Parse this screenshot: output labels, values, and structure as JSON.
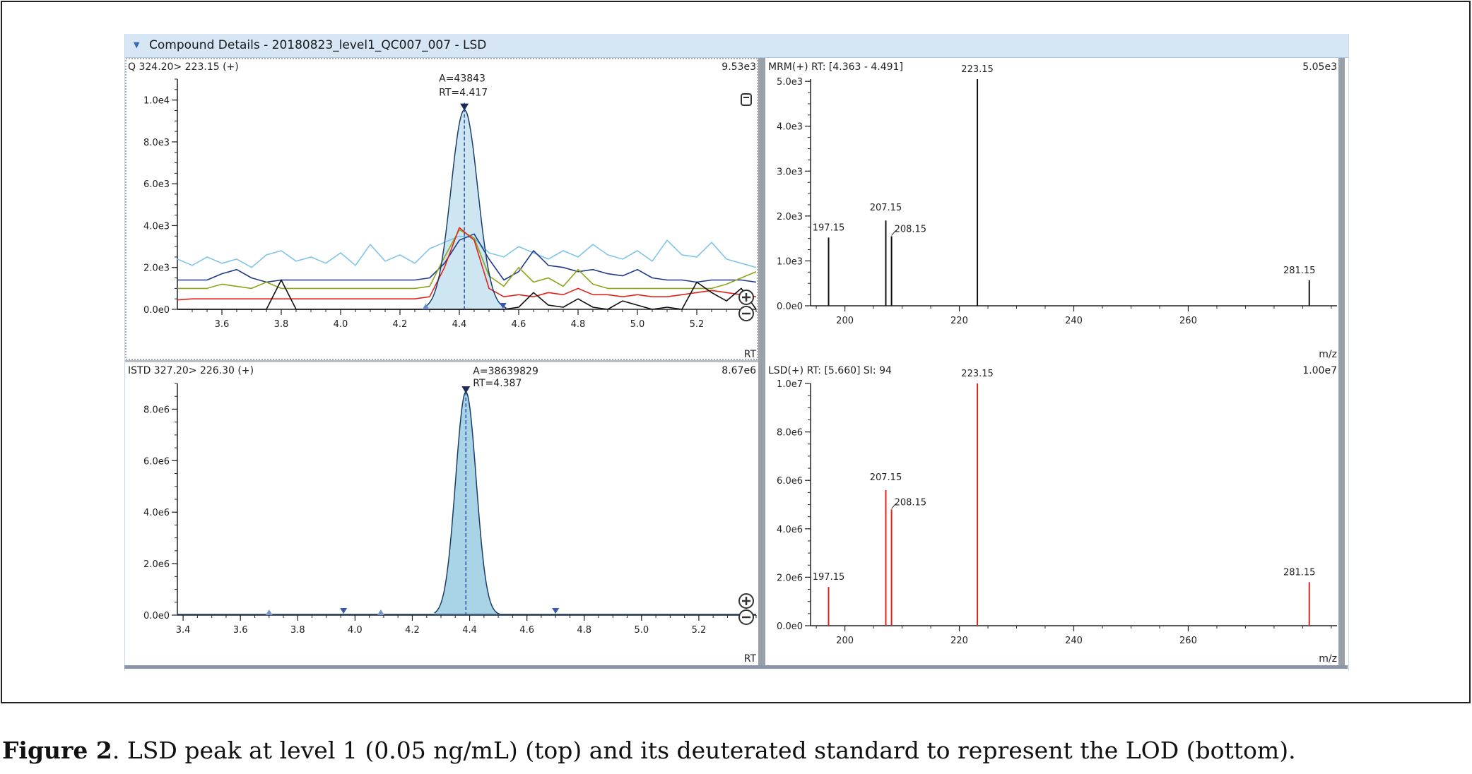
{
  "window": {
    "title": "Compound Details - 20180823_level1_QC007_007 - LSD",
    "collapse_icon": "triangle-down-icon"
  },
  "panels": {
    "quant": {
      "header": "Q 324.20> 223.15 (+)",
      "max_label": "9.53e3",
      "x_axis_label": "RT",
      "peak_label_area": "A=43843",
      "peak_label_rt": "RT=4.417"
    },
    "istd": {
      "header": "ISTD 327.20> 226.30 (+)",
      "max_label": "8.67e6",
      "x_axis_label": "RT",
      "peak_label_area": "A=38639829",
      "peak_label_rt": "RT=4.387"
    },
    "mrm": {
      "header": "MRM(+) RT: [4.363 - 4.491]",
      "max_label": "5.05e3",
      "x_axis_label": "m/z"
    },
    "lsd": {
      "header": "LSD(+) RT: [5.660] SI: 94",
      "max_label": "1.00e7",
      "x_axis_label": "m/z"
    }
  },
  "caption": {
    "bold": "Figure 2",
    "text": ". LSD peak at level 1 (0.05 ng/mL) (top) and its deuterated standard to represent the LOD (bottom)."
  },
  "chart_data": [
    {
      "type": "line",
      "panel": "quant",
      "title": "Q 324.20> 223.15 (+)",
      "xlabel": "RT",
      "ylabel": "",
      "xlim": [
        3.45,
        5.4
      ],
      "ylim": [
        0,
        11000
      ],
      "x_ticks": [
        3.6,
        3.8,
        4.0,
        4.2,
        4.4,
        4.6,
        4.8,
        5.0,
        5.2
      ],
      "y_ticks": [
        0,
        2000,
        4000,
        6000,
        8000,
        10000
      ],
      "y_tick_labels": [
        "0.0e0",
        "2.0e3",
        "4.0e3",
        "6.0e3",
        "8.0e3",
        "1.0e4"
      ],
      "peak": {
        "apex_rt": 4.417,
        "apex_height": 9530,
        "width_sigma": 0.045,
        "area_label": "A=43843",
        "rt_label": "RT=4.417"
      },
      "series": [
        {
          "color": "#7fc4ea",
          "x": [
            3.45,
            3.5,
            3.55,
            3.6,
            3.65,
            3.7,
            3.75,
            3.8,
            3.85,
            3.9,
            3.95,
            4.0,
            4.05,
            4.1,
            4.15,
            4.2,
            4.25,
            4.3,
            4.35,
            4.4,
            4.45,
            4.5,
            4.55,
            4.6,
            4.65,
            4.7,
            4.75,
            4.8,
            4.85,
            4.9,
            4.95,
            5.0,
            5.05,
            5.1,
            5.15,
            5.2,
            5.25,
            5.3,
            5.35,
            5.4
          ],
          "y": [
            2400,
            2100,
            2500,
            2200,
            2400,
            2000,
            2600,
            2800,
            2300,
            2500,
            2200,
            2700,
            2100,
            3100,
            2300,
            2600,
            2200,
            2900,
            3200,
            3500,
            3400,
            2700,
            2500,
            3000,
            2700,
            2400,
            2800,
            2500,
            3100,
            2600,
            2400,
            2800,
            2300,
            3300,
            2600,
            2500,
            3200,
            2400,
            2200,
            2000
          ]
        },
        {
          "color": "#1f3a8a",
          "x": [
            3.45,
            3.5,
            3.55,
            3.6,
            3.65,
            3.7,
            3.75,
            3.8,
            3.85,
            3.9,
            3.95,
            4.0,
            4.05,
            4.1,
            4.15,
            4.2,
            4.25,
            4.3,
            4.35,
            4.4,
            4.45,
            4.5,
            4.55,
            4.6,
            4.65,
            4.7,
            4.75,
            4.8,
            4.85,
            4.9,
            4.95,
            5.0,
            5.05,
            5.1,
            5.15,
            5.2,
            5.25,
            5.3,
            5.35,
            5.4
          ],
          "y": [
            1400,
            1400,
            1400,
            1700,
            1900,
            1500,
            1300,
            1400,
            1400,
            1400,
            1400,
            1400,
            1400,
            1400,
            1400,
            1400,
            1400,
            1500,
            2200,
            3300,
            3600,
            2400,
            1400,
            1800,
            2800,
            2100,
            2000,
            1800,
            1900,
            1700,
            1600,
            1900,
            1500,
            1400,
            1400,
            1300,
            1400,
            1400,
            1400,
            1300
          ]
        },
        {
          "color": "#8ea31a",
          "x": [
            3.45,
            3.5,
            3.55,
            3.6,
            3.65,
            3.7,
            3.75,
            3.8,
            3.85,
            3.9,
            3.95,
            4.0,
            4.05,
            4.1,
            4.15,
            4.2,
            4.25,
            4.3,
            4.35,
            4.4,
            4.45,
            4.5,
            4.55,
            4.6,
            4.65,
            4.7,
            4.75,
            4.8,
            4.85,
            4.9,
            4.95,
            5.0,
            5.05,
            5.1,
            5.15,
            5.2,
            5.25,
            5.3,
            5.35,
            5.4
          ],
          "y": [
            1000,
            1000,
            1000,
            1200,
            1100,
            1000,
            1300,
            1000,
            1000,
            1000,
            1000,
            1000,
            1000,
            1000,
            1000,
            1000,
            1000,
            1100,
            2500,
            3800,
            3400,
            1600,
            1100,
            2000,
            1300,
            1500,
            1100,
            1900,
            1200,
            1000,
            1000,
            1000,
            1000,
            1000,
            1000,
            1000,
            1000,
            1200,
            1500,
            1800
          ]
        },
        {
          "color": "#e0241c",
          "x": [
            3.45,
            3.5,
            3.55,
            3.6,
            3.65,
            3.7,
            3.75,
            3.8,
            3.85,
            3.9,
            3.95,
            4.0,
            4.05,
            4.1,
            4.15,
            4.2,
            4.25,
            4.3,
            4.35,
            4.4,
            4.45,
            4.5,
            4.55,
            4.6,
            4.65,
            4.7,
            4.75,
            4.8,
            4.85,
            4.9,
            4.95,
            5.0,
            5.05,
            5.1,
            5.15,
            5.2,
            5.25,
            5.3,
            5.35,
            5.4
          ],
          "y": [
            450,
            500,
            500,
            500,
            500,
            500,
            500,
            500,
            500,
            500,
            500,
            500,
            500,
            500,
            500,
            500,
            500,
            600,
            2000,
            3900,
            3300,
            1000,
            600,
            700,
            600,
            800,
            700,
            1000,
            700,
            700,
            600,
            700,
            600,
            600,
            700,
            800,
            900,
            800,
            700,
            600
          ]
        },
        {
          "color": "#111111",
          "x": [
            3.45,
            3.5,
            3.55,
            3.6,
            3.65,
            3.7,
            3.75,
            3.8,
            3.85,
            3.9,
            3.95,
            4.0,
            4.05,
            4.1,
            4.15,
            4.2,
            4.25,
            4.3,
            4.35,
            4.4,
            4.45,
            4.5,
            4.55,
            4.6,
            4.65,
            4.7,
            4.75,
            4.8,
            4.85,
            4.9,
            4.95,
            5.0,
            5.05,
            5.1,
            5.15,
            5.2,
            5.25,
            5.3,
            5.35,
            5.4
          ],
          "y": [
            0,
            0,
            0,
            0,
            0,
            0,
            0,
            1400,
            0,
            0,
            0,
            0,
            0,
            0,
            0,
            0,
            0,
            0,
            0,
            0,
            0,
            0,
            0,
            100,
            800,
            200,
            100,
            500,
            100,
            0,
            400,
            200,
            0,
            100,
            0,
            1300,
            800,
            400,
            1000,
            0
          ]
        }
      ]
    },
    {
      "type": "line",
      "panel": "istd",
      "title": "ISTD 327.20> 226.30 (+)",
      "xlabel": "RT",
      "ylabel": "",
      "xlim": [
        3.38,
        5.4
      ],
      "ylim": [
        0,
        9000000
      ],
      "x_ticks": [
        3.4,
        3.6,
        3.8,
        4.0,
        4.2,
        4.4,
        4.6,
        4.8,
        5.0,
        5.2
      ],
      "y_ticks": [
        0,
        2000000,
        4000000,
        6000000,
        8000000
      ],
      "y_tick_labels": [
        "0.0e0",
        "2.0e6",
        "4.0e6",
        "6.0e6",
        "8.0e6"
      ],
      "peak": {
        "apex_rt": 4.387,
        "apex_height": 8670000,
        "width_sigma": 0.036,
        "area_label": "A=38639829",
        "rt_label": "RT=4.387"
      }
    },
    {
      "type": "bar",
      "panel": "mrm",
      "title": "MRM(+) RT: [4.363 - 4.491]",
      "xlabel": "m/z",
      "ylabel": "",
      "xlim": [
        194,
        286
      ],
      "ylim": [
        0,
        5050
      ],
      "x_ticks": [
        200,
        220,
        240,
        260
      ],
      "y_ticks": [
        0,
        1000,
        2000,
        3000,
        4000,
        5000
      ],
      "y_tick_labels": [
        "0.0e0",
        "1.0e3",
        "2.0e3",
        "3.0e3",
        "4.0e3",
        "5.0e3"
      ],
      "color": "#111111",
      "x": [
        197.15,
        207.15,
        208.15,
        223.15,
        281.15
      ],
      "values": [
        1520,
        1900,
        1550,
        5050,
        570
      ],
      "labels": [
        "197.15",
        "207.15",
        "208.15",
        "223.15",
        "281.15"
      ]
    },
    {
      "type": "bar",
      "panel": "lsd",
      "title": "LSD(+) RT: [5.660] SI: 94",
      "xlabel": "m/z",
      "ylabel": "",
      "xlim": [
        194,
        286
      ],
      "ylim": [
        0,
        10000000
      ],
      "x_ticks": [
        200,
        220,
        240,
        260
      ],
      "y_ticks": [
        0,
        2000000,
        4000000,
        6000000,
        8000000,
        10000000
      ],
      "y_tick_labels": [
        "0.0e0",
        "2.0e6",
        "4.0e6",
        "6.0e6",
        "8.0e6",
        "1.0e7"
      ],
      "color": "#d9261c",
      "x": [
        197.15,
        207.15,
        208.15,
        223.15,
        281.15
      ],
      "values": [
        1600000,
        5600000,
        4800000,
        10000000,
        1800000
      ],
      "labels": [
        "197.15",
        "207.15",
        "208.15",
        "223.15",
        "281.15"
      ]
    }
  ]
}
